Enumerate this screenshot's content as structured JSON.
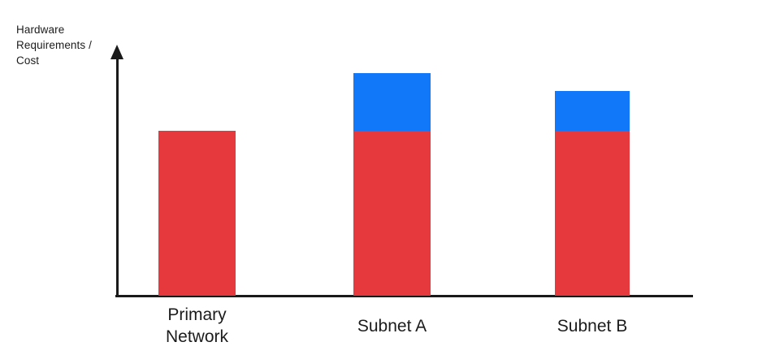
{
  "chart_data": {
    "type": "bar",
    "stacked": true,
    "title": "",
    "xlabel": "",
    "ylabel": "Hardware Requirements / Cost",
    "categories": [
      "Primary Network",
      "Subnet A",
      "Subnet B"
    ],
    "series": [
      {
        "name": "red-base-segment",
        "color": "#e5393e",
        "values": [
          1.0,
          1.0,
          1.0
        ]
      },
      {
        "name": "blue-top-segment",
        "color": "#1078f9",
        "values": [
          0,
          0.35,
          0.24
        ]
      }
    ],
    "totals": [
      1.0,
      1.35,
      1.24
    ],
    "units": "relative (axis unlabeled, no ticks)",
    "ylim": [
      0,
      1.5
    ],
    "gridlines": false,
    "legend": "none",
    "axis_color": "#1a1a1a",
    "y_axis_arrow": true
  }
}
